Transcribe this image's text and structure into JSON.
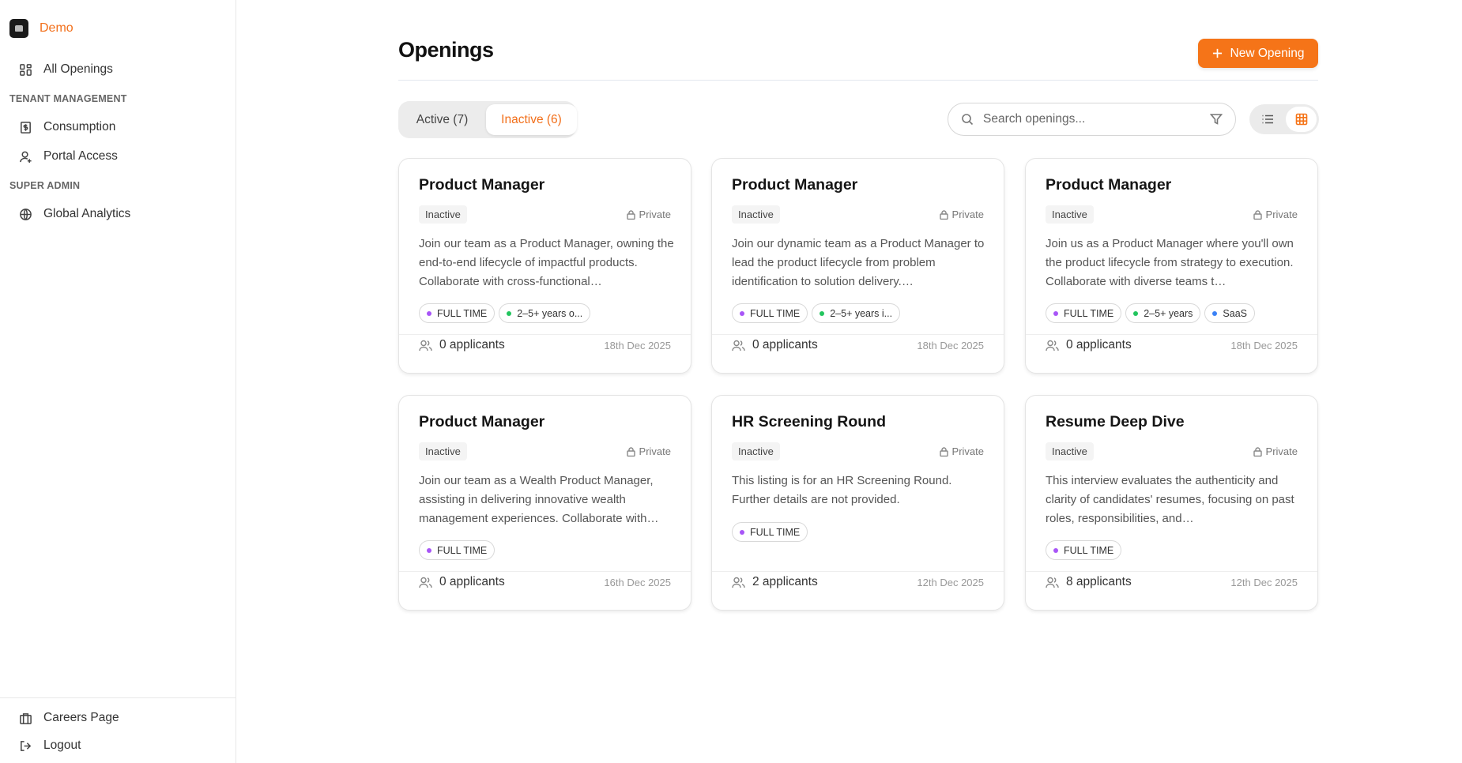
{
  "sidebar": {
    "brand": "Demo",
    "items": [
      {
        "label": "All Openings",
        "icon": "grid-icon"
      }
    ],
    "sections": [
      {
        "title": "TENANT MANAGEMENT",
        "items": [
          {
            "label": "Consumption",
            "icon": "receipt-dollar-icon"
          },
          {
            "label": "Portal Access",
            "icon": "user-plus-icon"
          }
        ]
      },
      {
        "title": "SUPER ADMIN",
        "items": [
          {
            "label": "Global Analytics",
            "icon": "globe-icon"
          }
        ]
      }
    ],
    "bottom": [
      {
        "label": "Careers Page",
        "icon": "building-icon"
      },
      {
        "label": "Logout",
        "icon": "logout-icon"
      }
    ]
  },
  "header": {
    "title": "Openings",
    "new_button": "New Opening"
  },
  "tabs": [
    {
      "label": "Active (7)",
      "active": false
    },
    {
      "label": "Inactive (6)",
      "active": true
    }
  ],
  "search": {
    "placeholder": "Search openings...",
    "value": ""
  },
  "view": {
    "selected": "grid"
  },
  "colors": {
    "accent": "#f57418",
    "purple": "#a855f7",
    "green": "#22c55e",
    "blue": "#3b82f6"
  },
  "cards": [
    {
      "title": "Product Manager",
      "status": "Inactive",
      "visibility": "Private",
      "description": "Join our team as a Product Manager, owning the end-to-end lifecycle of impactful products. Collaborate with cross-functional…",
      "tags": [
        {
          "label": "FULL TIME",
          "color": "#a855f7"
        },
        {
          "label": "2–5+ years o...",
          "color": "#22c55e"
        }
      ],
      "applicants": "0 applicants",
      "date": "18th Dec 2025"
    },
    {
      "title": "Product Manager",
      "status": "Inactive",
      "visibility": "Private",
      "description": "Join our dynamic team as a Product Manager to lead the product lifecycle from problem identification to solution delivery.…",
      "tags": [
        {
          "label": "FULL TIME",
          "color": "#a855f7"
        },
        {
          "label": "2–5+ years i...",
          "color": "#22c55e"
        }
      ],
      "applicants": "0 applicants",
      "date": "18th Dec 2025"
    },
    {
      "title": "Product Manager",
      "status": "Inactive",
      "visibility": "Private",
      "description": "Join us as a Product Manager where you'll own the product lifecycle from strategy to execution. Collaborate with diverse teams t…",
      "tags": [
        {
          "label": "FULL TIME",
          "color": "#a855f7"
        },
        {
          "label": "2–5+ years",
          "color": "#22c55e"
        },
        {
          "label": "SaaS",
          "color": "#3b82f6"
        }
      ],
      "applicants": "0 applicants",
      "date": "18th Dec 2025"
    },
    {
      "title": "Product Manager",
      "status": "Inactive",
      "visibility": "Private",
      "description": "Join our team as a Wealth Product Manager, assisting in delivering innovative wealth management experiences. Collaborate with…",
      "tags": [
        {
          "label": "FULL TIME",
          "color": "#a855f7"
        }
      ],
      "applicants": "0 applicants",
      "date": "16th Dec 2025"
    },
    {
      "title": "HR Screening Round",
      "status": "Inactive",
      "visibility": "Private",
      "description": "This listing is for an HR Screening Round. Further details are not provided.",
      "tags": [
        {
          "label": "FULL TIME",
          "color": "#a855f7"
        }
      ],
      "applicants": "2 applicants",
      "date": "12th Dec 2025"
    },
    {
      "title": "Resume Deep Dive",
      "status": "Inactive",
      "visibility": "Private",
      "description": "This interview evaluates the authenticity and clarity of candidates' resumes, focusing on past roles, responsibilities, and…",
      "tags": [
        {
          "label": "FULL TIME",
          "color": "#a855f7"
        }
      ],
      "applicants": "8 applicants",
      "date": "12th Dec 2025"
    }
  ]
}
